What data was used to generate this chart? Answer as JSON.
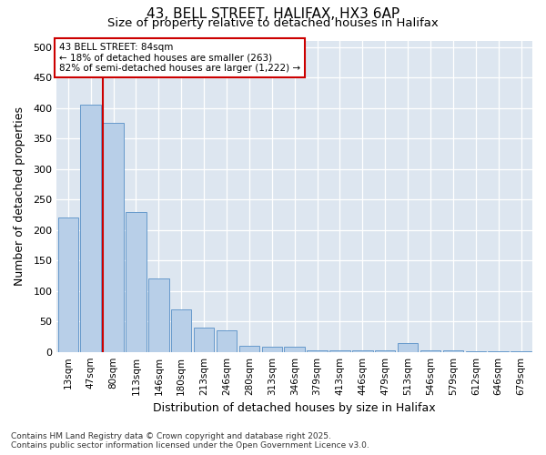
{
  "title_line1": "43, BELL STREET, HALIFAX, HX3 6AP",
  "title_line2": "Size of property relative to detached houses in Halifax",
  "xlabel": "Distribution of detached houses by size in Halifax",
  "ylabel": "Number of detached properties",
  "categories": [
    "13sqm",
    "47sqm",
    "80sqm",
    "113sqm",
    "146sqm",
    "180sqm",
    "213sqm",
    "246sqm",
    "280sqm",
    "313sqm",
    "346sqm",
    "379sqm",
    "413sqm",
    "446sqm",
    "479sqm",
    "513sqm",
    "546sqm",
    "579sqm",
    "612sqm",
    "646sqm",
    "679sqm"
  ],
  "values": [
    220,
    405,
    375,
    230,
    120,
    70,
    40,
    35,
    10,
    8,
    8,
    3,
    3,
    3,
    3,
    15,
    3,
    3,
    1,
    1,
    1
  ],
  "bar_color": "#b8cfe8",
  "bar_edge_color": "#6699cc",
  "background_color": "#dde6f0",
  "red_line_x": 2.0,
  "red_line_label": "43 BELL STREET: 84sqm",
  "annotation_line2": "← 18% of detached houses are smaller (263)",
  "annotation_line3": "82% of semi-detached houses are larger (1,222) →",
  "annotation_box_facecolor": "#ffffff",
  "annotation_box_edgecolor": "#cc0000",
  "footnote_line1": "Contains HM Land Registry data © Crown copyright and database right 2025.",
  "footnote_line2": "Contains public sector information licensed under the Open Government Licence v3.0.",
  "ylim": [
    0,
    510
  ],
  "yticks": [
    0,
    50,
    100,
    150,
    200,
    250,
    300,
    350,
    400,
    450,
    500
  ]
}
